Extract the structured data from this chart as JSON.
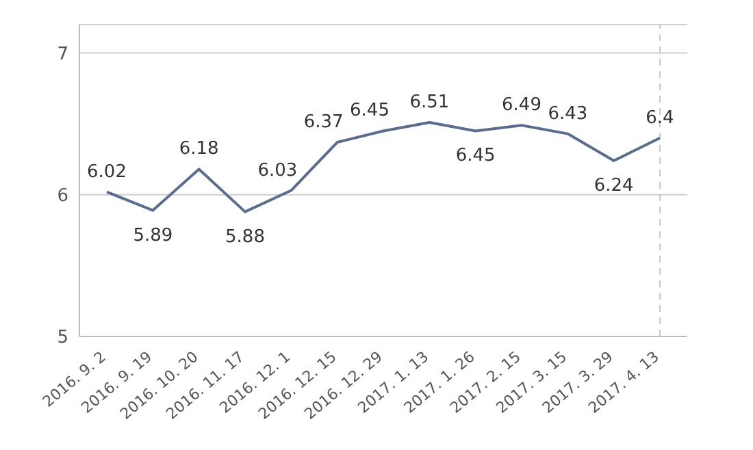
{
  "chart_data": {
    "type": "line",
    "categories": [
      "2016. 9. 2",
      "2016. 9. 19",
      "2016. 10. 20",
      "2016. 11. 17",
      "2016. 12. 1",
      "2016. 12. 15",
      "2016. 12. 29",
      "2017. 1. 13",
      "2017. 1. 26",
      "2017. 2. 15",
      "2017. 3. 15",
      "2017. 3. 29",
      "2017. 4. 13"
    ],
    "series": [
      {
        "color": "#5a6d8e",
        "values": [
          6.02,
          5.89,
          6.18,
          5.88,
          6.03,
          6.37,
          6.45,
          6.51,
          6.45,
          6.49,
          6.43,
          6.24,
          6.4
        ]
      }
    ],
    "data_labels": true,
    "ylim": [
      5,
      7.2
    ],
    "yticks": [
      5,
      6,
      7
    ],
    "grid": "y",
    "marker": "none",
    "line_style": "solid",
    "ref_lines": [
      {
        "axis": "x",
        "value": "2017. 4. 13",
        "color": "#c8c8c8",
        "line_style": "dashed"
      }
    ]
  }
}
